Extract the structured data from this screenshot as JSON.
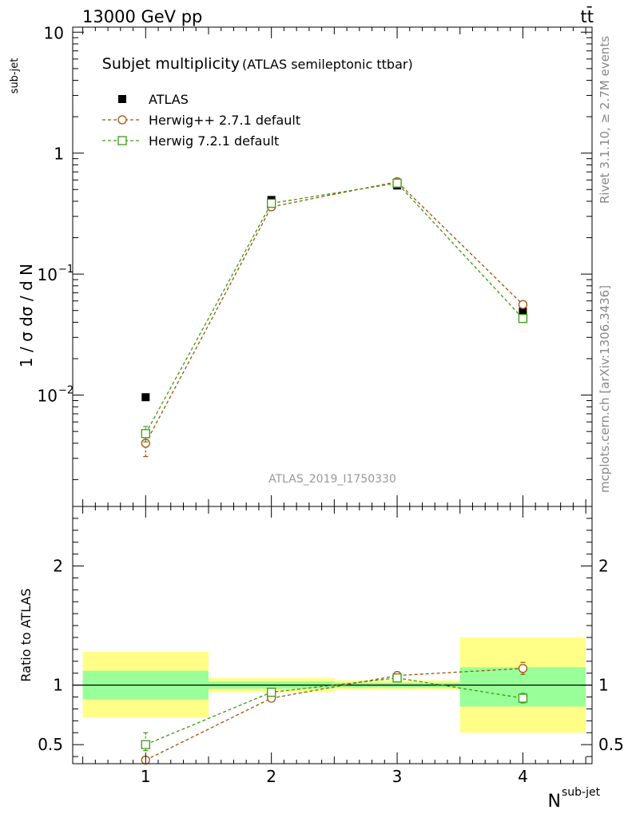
{
  "header": {
    "energy": "13000 GeV pp",
    "process": "tt̄"
  },
  "side_labels": {
    "rivet": "Rivet 3.1.10, ≥ 2.7M events",
    "mcplots": "mcplots.cern.ch [arXiv:1306.3436]"
  },
  "analysis_id": "ATLAS_2019_I1750330",
  "chart_data": [
    {
      "type": "scatter",
      "title": "Subjet multiplicity",
      "subtitle": "(ATLAS semileptonic ttbar)",
      "ylabel": "1 / σ dσ / d N",
      "ylabel_sup": "sub-jet",
      "y_scale": "log",
      "ylim": [
        0.0012,
        11
      ],
      "xlim": [
        0.42,
        4.55
      ],
      "x_ticks": [
        1,
        2,
        3,
        4
      ],
      "y_ticks": [
        {
          "value": 10,
          "label": "10",
          "exp": ""
        },
        {
          "value": 1,
          "label": "1",
          "exp": ""
        },
        {
          "value": 0.1,
          "label": "10",
          "exp": "−1"
        },
        {
          "value": 0.01,
          "label": "10",
          "exp": "−2"
        }
      ],
      "legend_placement": "top-left",
      "series": [
        {
          "name": "ATLAS",
          "marker": "filled-square",
          "color": "#000000",
          "x": [
            1,
            2,
            3,
            4
          ],
          "y": [
            0.0096,
            0.41,
            0.54,
            0.049
          ]
        },
        {
          "name": "Herwig++ 2.7.1 default",
          "marker": "open-circle",
          "color": "#a0520a",
          "x": [
            1,
            2,
            3,
            4
          ],
          "y": [
            0.004,
            0.36,
            0.58,
            0.056
          ],
          "err_low": [
            0.0009,
            0,
            0,
            0.0015
          ],
          "err_high": [
            0.0009,
            0,
            0,
            0.0015
          ]
        },
        {
          "name": "Herwig 7.2.1 default",
          "marker": "open-square",
          "color": "#3a9a10",
          "x": [
            1,
            2,
            3,
            4
          ],
          "y": [
            0.0048,
            0.385,
            0.565,
            0.043
          ],
          "err_low": [
            0.0007,
            0,
            0,
            0.0012
          ],
          "err_high": [
            0.0007,
            0,
            0,
            0.0012
          ]
        }
      ]
    },
    {
      "type": "scatter",
      "ylabel": "Ratio to ATLAS",
      "xlabel": "N",
      "xlabel_sup": "sub-jet",
      "ylim": [
        0.34,
        2.5
      ],
      "xlim": [
        0.42,
        4.55
      ],
      "x_ticks": [
        1,
        2,
        3,
        4
      ],
      "y_ticks": [
        {
          "value": 2,
          "label": "2"
        },
        {
          "value": 1,
          "label": "1"
        },
        {
          "value": 0.5,
          "label": "0.5"
        }
      ],
      "reference_line": 1,
      "bands": [
        {
          "x0": 0.5,
          "x1": 1.5,
          "inner": [
            0.88,
            1.12
          ],
          "outer": [
            0.73,
            1.28
          ]
        },
        {
          "x0": 1.5,
          "x1": 2.5,
          "inner": [
            0.97,
            1.03
          ],
          "outer": [
            0.94,
            1.06
          ]
        },
        {
          "x0": 2.5,
          "x1": 3.5,
          "inner": [
            0.98,
            1.02
          ],
          "outer": [
            0.96,
            1.04
          ]
        },
        {
          "x0": 3.5,
          "x1": 4.5,
          "inner": [
            0.82,
            1.15
          ],
          "outer": [
            0.6,
            1.4
          ]
        }
      ],
      "band_colors": {
        "inner": "#99ff99",
        "outer": "#ffff88"
      },
      "series": [
        {
          "name": "Herwig++ 2.7.1 default",
          "marker": "open-circle",
          "color": "#a0520a",
          "x": [
            1,
            2,
            3,
            4
          ],
          "y": [
            0.37,
            0.89,
            1.08,
            1.14
          ],
          "err_low": [
            0,
            0,
            0,
            0.05
          ],
          "err_high": [
            0,
            0,
            0,
            0.05
          ]
        },
        {
          "name": "Herwig 7.2.1 default",
          "marker": "open-square",
          "color": "#3a9a10",
          "x": [
            1,
            2,
            3,
            4
          ],
          "y": [
            0.5,
            0.94,
            1.06,
            0.89
          ],
          "err_low": [
            0.05,
            0,
            0,
            0.04
          ],
          "err_high": [
            0.1,
            0,
            0,
            0.04
          ]
        }
      ]
    }
  ]
}
